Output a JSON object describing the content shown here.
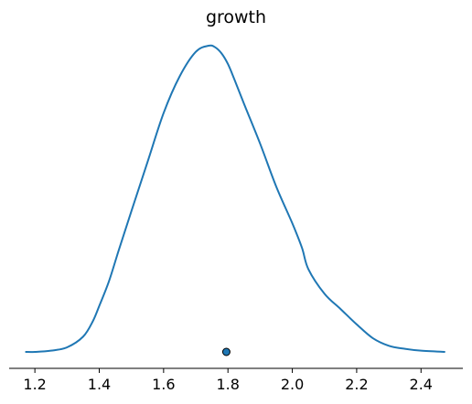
{
  "chart_data": {
    "type": "line",
    "title": "growth",
    "xlabel": "",
    "ylabel": "",
    "xlim": [
      1.12,
      2.53
    ],
    "x_ticks": [
      1.2,
      1.4,
      1.6,
      1.8,
      2.0,
      2.2,
      2.4
    ],
    "x_tick_labels": [
      "1.2",
      "1.4",
      "1.6",
      "1.8",
      "2.0",
      "2.2",
      "2.4"
    ],
    "y_axis_visible": false,
    "grid": false,
    "legend": "none",
    "line_color": "#1f77b4",
    "marker_color": "#1f77b4",
    "marker_edge_color": "#000000",
    "series": [
      {
        "x": [
          1.17,
          1.2,
          1.25,
          1.3,
          1.35,
          1.38,
          1.4,
          1.43,
          1.46,
          1.5,
          1.55,
          1.6,
          1.65,
          1.7,
          1.74,
          1.76,
          1.78,
          1.8,
          1.82,
          1.85,
          1.9,
          1.95,
          2.0,
          2.03,
          2.05,
          2.1,
          2.15,
          2.2,
          2.25,
          2.3,
          2.35,
          2.4,
          2.475
        ],
        "y": [
          0.0,
          0.0,
          0.004,
          0.015,
          0.05,
          0.1,
          0.15,
          0.23,
          0.33,
          0.46,
          0.62,
          0.78,
          0.9,
          0.98,
          1.0,
          0.995,
          0.975,
          0.94,
          0.89,
          0.81,
          0.68,
          0.54,
          0.42,
          0.34,
          0.27,
          0.19,
          0.14,
          0.09,
          0.045,
          0.02,
          0.01,
          0.004,
          0.0
        ]
      }
    ],
    "point_estimate": {
      "x": 1.795,
      "y": 0
    }
  }
}
